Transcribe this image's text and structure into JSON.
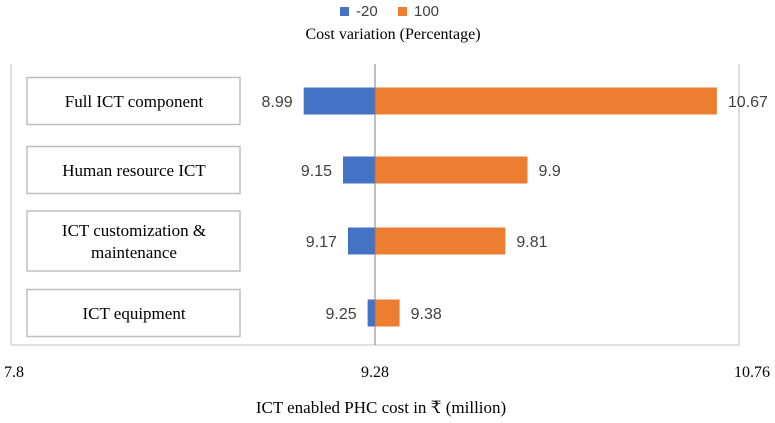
{
  "chart_data": {
    "type": "bar",
    "orientation": "horizontal",
    "subtype": "tornado",
    "legend_title": "Cost variation  (Percentage)",
    "legend_position": "top",
    "series": [
      {
        "name": "-20",
        "color": "#4472c4",
        "values": [
          8.99,
          9.15,
          9.17,
          9.25
        ]
      },
      {
        "name": "100",
        "color": "#ed7d31",
        "values": [
          10.67,
          9.9,
          9.81,
          9.38
        ]
      }
    ],
    "categories": [
      [
        "Full ICT component"
      ],
      [
        "Human resource ICT"
      ],
      [
        "ICT customization  &",
        "maintenance"
      ],
      [
        "ICT equipment"
      ]
    ],
    "value_labels": {
      "low": [
        "8.99",
        "9.15",
        "9.17",
        "9.25"
      ],
      "high": [
        "10.67",
        "9.9",
        "9.81",
        "9.38"
      ]
    },
    "base_value": 9.28,
    "xlim": [
      7.8,
      10.76
    ],
    "x_ticks": [
      "7.8",
      "9.28",
      "10.76"
    ],
    "xlabel": "ICT enabled PHC cost in ₹ (million)",
    "grid": false
  }
}
